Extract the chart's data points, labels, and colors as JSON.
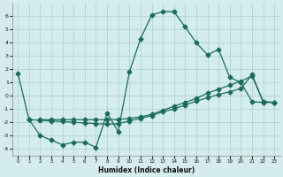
{
  "xlabel": "Humidex (Indice chaleur)",
  "background_color": "#d4ecec",
  "grid_color": "#aacece",
  "line_color": "#1a6b5a",
  "xlim": [
    -0.5,
    23.5
  ],
  "ylim": [
    -4.5,
    7.0
  ],
  "yticks": [
    -4,
    -3,
    -2,
    -1,
    0,
    1,
    2,
    3,
    4,
    5,
    6
  ],
  "xticks": [
    0,
    1,
    2,
    3,
    4,
    5,
    6,
    7,
    8,
    9,
    10,
    11,
    12,
    13,
    14,
    15,
    16,
    17,
    18,
    19,
    20,
    21,
    22,
    23
  ],
  "line_peak_x": [
    0,
    1,
    2,
    3,
    4,
    5,
    6,
    7,
    8,
    9,
    10,
    11,
    12,
    13,
    14,
    15,
    16,
    17,
    18,
    19,
    20,
    21,
    22,
    23
  ],
  "line_peak_y": [
    1.7,
    -1.8,
    -3.0,
    -3.35,
    -3.7,
    -3.5,
    -3.5,
    -3.9,
    -1.3,
    -2.7,
    1.8,
    4.3,
    6.1,
    6.35,
    6.35,
    5.2,
    4.0,
    3.1,
    3.5,
    1.4,
    1.0,
    -0.45,
    -0.5,
    -0.5
  ],
  "line_diag_x": [
    1,
    2,
    3,
    4,
    5,
    6,
    7,
    8,
    9,
    10,
    11,
    12,
    13,
    14,
    15,
    16,
    17,
    18,
    19,
    20,
    21,
    22,
    23
  ],
  "line_diag_y": [
    -1.8,
    -1.85,
    -1.9,
    -1.95,
    -2.0,
    -2.05,
    -2.1,
    -2.15,
    -2.1,
    -1.9,
    -1.7,
    -1.5,
    -1.2,
    -1.0,
    -0.7,
    -0.4,
    -0.15,
    0.1,
    0.3,
    0.55,
    1.6,
    -0.45,
    -0.5
  ],
  "line_low_x": [
    2,
    3,
    4,
    5,
    6,
    7,
    8,
    9,
    10,
    11,
    12,
    13,
    14,
    15,
    16,
    17,
    18,
    19,
    20,
    21,
    22,
    23
  ],
  "line_low_y": [
    -1.8,
    -1.8,
    -1.8,
    -1.8,
    -1.8,
    -1.8,
    -1.8,
    -1.8,
    -1.7,
    -1.6,
    -1.4,
    -1.1,
    -0.8,
    -0.5,
    -0.2,
    0.2,
    0.5,
    0.8,
    1.1,
    1.5,
    -0.45,
    -0.5
  ]
}
